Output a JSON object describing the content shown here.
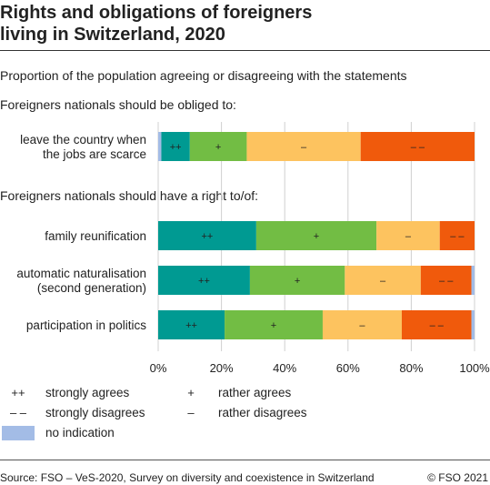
{
  "header": {
    "title_line1": "Rights and obligations of foreigners",
    "title_line2": "living in Switzerland, 2020",
    "subtitle": "Proportion of the population agreeing or disagreeing with the statements"
  },
  "chart_data": {
    "type": "bar",
    "orientation": "horizontal-stacked-100",
    "xlim": [
      0,
      100
    ],
    "x_ticks": [
      "0%",
      "20%",
      "40%",
      "60%",
      "80%",
      "100%"
    ],
    "grid": "vertical",
    "legend_position": "bottom",
    "groups": [
      {
        "heading": "Foreigners nationals should be obliged to:",
        "bars": [
          {
            "label_lines": [
              "leave the country when",
              "the jobs are scarce"
            ],
            "segments": [
              {
                "key": "no_indication",
                "value": 1
              },
              {
                "key": "strongly_agrees",
                "value": 9
              },
              {
                "key": "rather_agrees",
                "value": 18
              },
              {
                "key": "rather_disagrees",
                "value": 36
              },
              {
                "key": "strongly_disagrees",
                "value": 36
              }
            ]
          }
        ]
      },
      {
        "heading": "Foreigners nationals should have a right to/of:",
        "bars": [
          {
            "label_lines": [
              "family reunification"
            ],
            "segments": [
              {
                "key": "strongly_agrees",
                "value": 31
              },
              {
                "key": "rather_agrees",
                "value": 38
              },
              {
                "key": "rather_disagrees",
                "value": 20
              },
              {
                "key": "strongly_disagrees",
                "value": 11
              }
            ]
          },
          {
            "label_lines": [
              "automatic naturalisation",
              "(second generation)"
            ],
            "segments": [
              {
                "key": "strongly_agrees",
                "value": 29
              },
              {
                "key": "rather_agrees",
                "value": 30
              },
              {
                "key": "rather_disagrees",
                "value": 24
              },
              {
                "key": "strongly_disagrees",
                "value": 16
              },
              {
                "key": "no_indication",
                "value": 1
              }
            ]
          },
          {
            "label_lines": [
              "participation in politics"
            ],
            "segments": [
              {
                "key": "strongly_agrees",
                "value": 21
              },
              {
                "key": "rather_agrees",
                "value": 31
              },
              {
                "key": "rather_disagrees",
                "value": 25
              },
              {
                "key": "strongly_disagrees",
                "value": 22
              },
              {
                "key": "no_indication",
                "value": 1
              }
            ]
          }
        ]
      }
    ],
    "categories": {
      "strongly_agrees": {
        "name": "strongly agrees",
        "symbol": "++",
        "color": "#009a92"
      },
      "rather_agrees": {
        "name": "rather agrees",
        "symbol": "+",
        "color": "#72bd44"
      },
      "rather_disagrees": {
        "name": "rather disagrees",
        "symbol": "–",
        "color": "#fdc35f"
      },
      "strongly_disagrees": {
        "name": "strongly disagrees",
        "symbol": "– –",
        "color": "#f05a0c"
      },
      "no_indication": {
        "name": "no indication",
        "symbol": "",
        "color": "#a3bce6"
      }
    }
  },
  "footer": {
    "source": "Source: FSO – VeS-2020, Survey on diversity and coexistence in Switzerland",
    "copyright": "© FSO 2021"
  }
}
